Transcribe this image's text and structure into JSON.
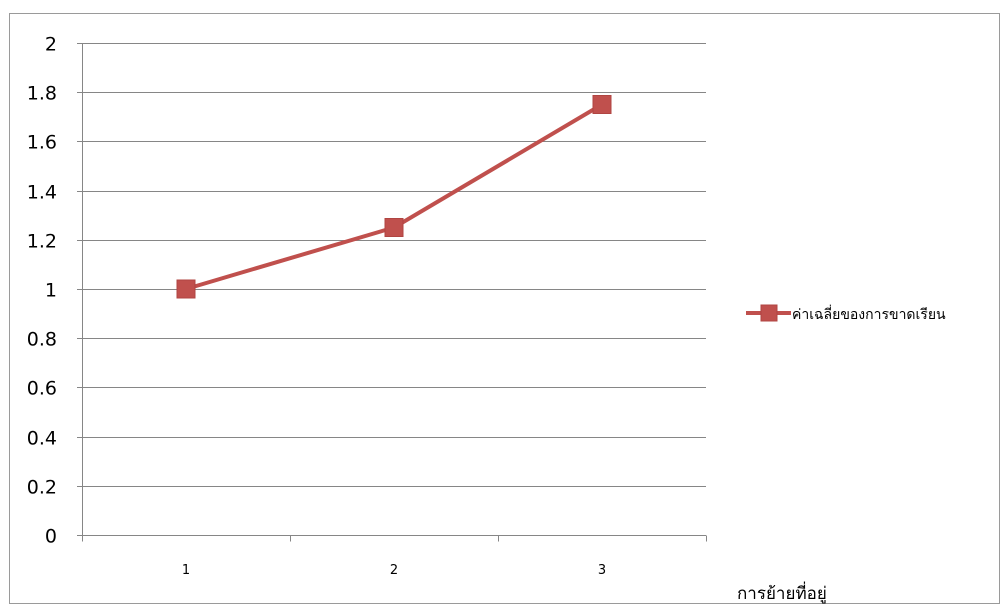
{
  "chart_data": {
    "type": "line",
    "title": "",
    "xlabel": "การย้ายที่อยู่",
    "ylabel": "",
    "categories": [
      "1",
      "2",
      "3"
    ],
    "ylim": [
      0,
      2
    ],
    "yticks": [
      "0",
      "0.2",
      "0.4",
      "0.6",
      "0.8",
      "1",
      "1.2",
      "1.4",
      "1.6",
      "1.8",
      "2"
    ],
    "grid": true,
    "legend_position": "right",
    "series": [
      {
        "name": "ค่าเฉลี่ยของการขาดเรียน",
        "values": [
          1,
          1.25,
          1.75
        ],
        "color": "#c0504d",
        "marker": "square"
      }
    ],
    "colors": {
      "gridline": "#868686",
      "frame": "#9a9a9a",
      "axis_text": "#000000",
      "series_line": "#c0504d",
      "marker_fill": "#c0504d",
      "marker_stroke": "#b04542"
    }
  }
}
